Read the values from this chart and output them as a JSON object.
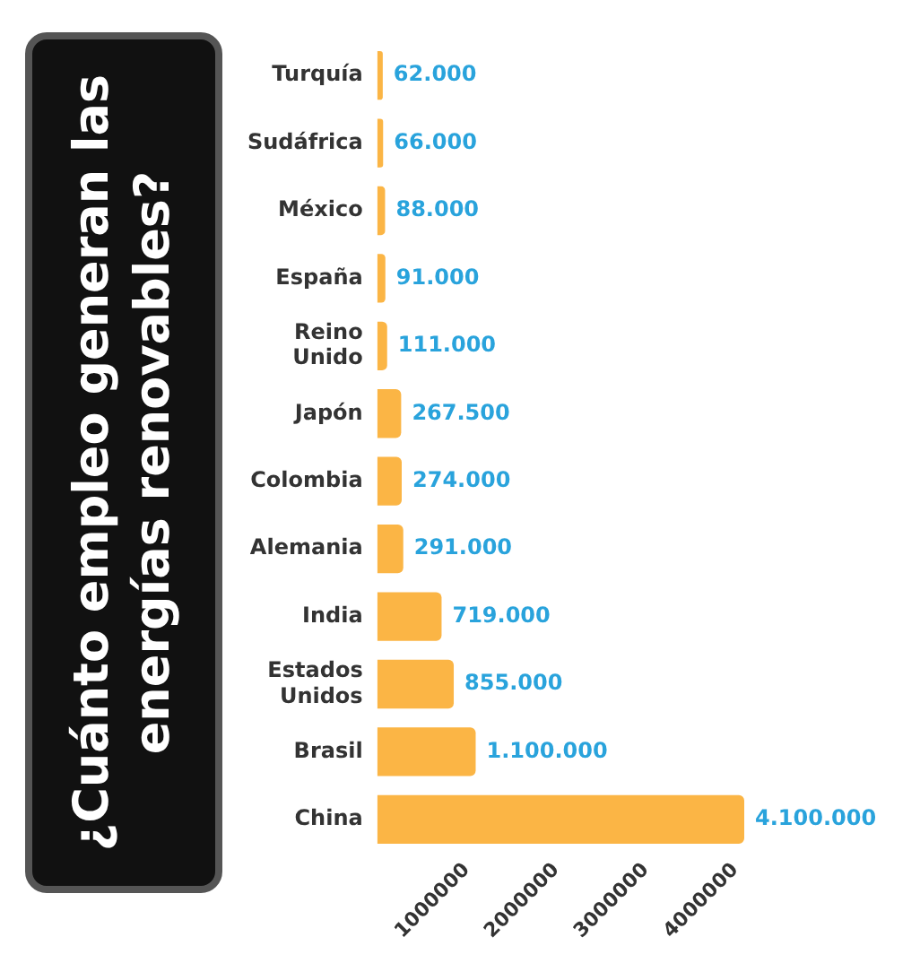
{
  "chart_data": {
    "type": "bar",
    "orientation": "horizontal",
    "title": "¿Cuánto empleo generan las energías renovables?",
    "categories": [
      "Turquía",
      "Sudáfrica",
      "México",
      "España",
      "Reino Unido",
      "Japón",
      "Colombia",
      "Alemania",
      "India",
      "Estados Unidos",
      "Brasil",
      "China"
    ],
    "values": [
      62000,
      66000,
      88000,
      91000,
      111000,
      267500,
      274000,
      291000,
      719000,
      855000,
      1100000,
      4100000
    ],
    "value_labels": [
      "62.000",
      "66.000",
      "88.000",
      "91.000",
      "111.000",
      "267.500",
      "274.000",
      "291.000",
      "719.000",
      "855.000",
      "1.100.000",
      "4.100.000"
    ],
    "color": "#fbb545",
    "xlim": [
      0,
      4100000
    ],
    "xticks": [
      1000000,
      2000000,
      3000000,
      4000000
    ],
    "grid": false,
    "legend": false
  }
}
